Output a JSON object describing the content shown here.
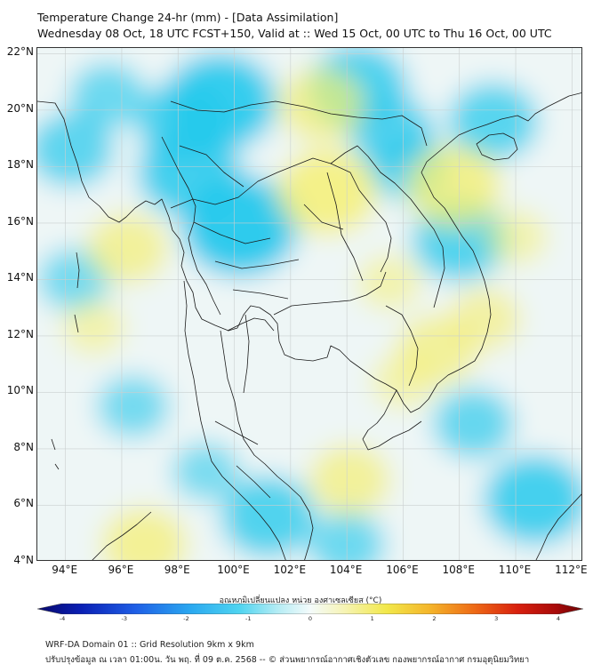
{
  "header": {
    "title": "Temperature Change 24-hr (mm) - [Data Assimilation]",
    "subtitle": "Wednesday 08 Oct, 18 UTC FCST+150, Valid at :: Wed 15 Oct, 00 UTC to Thu 16 Oct, 00 UTC"
  },
  "axes": {
    "lat_labels": [
      "22°N",
      "20°N",
      "18°N",
      "16°N",
      "14°N",
      "12°N",
      "10°N",
      "8°N",
      "6°N",
      "4°N"
    ],
    "lon_labels": [
      "94°E",
      "96°E",
      "98°E",
      "100°E",
      "102°E",
      "104°E",
      "106°E",
      "108°E",
      "110°E",
      "112°E"
    ],
    "lat_values": [
      22,
      20,
      18,
      16,
      14,
      12,
      10,
      8,
      6,
      4
    ],
    "lon_values": [
      94,
      96,
      98,
      100,
      102,
      104,
      106,
      108,
      110,
      112
    ],
    "lat_range": [
      4,
      22.2
    ],
    "lon_range": [
      93,
      112.4
    ]
  },
  "field_blobs": [
    {
      "lon": 99.5,
      "lat": 20.3,
      "value": -1.6
    },
    {
      "lon": 98.4,
      "lat": 17.8,
      "value": -1.4
    },
    {
      "lon": 100.2,
      "lat": 15.9,
      "value": -1.7
    },
    {
      "lon": 98.2,
      "lat": 19.6,
      "value": -1.2
    },
    {
      "lon": 104.4,
      "lat": 20.8,
      "value": -1.3
    },
    {
      "lon": 105.6,
      "lat": 19.2,
      "value": -1.0
    },
    {
      "lon": 106.2,
      "lat": 18.0,
      "value": -0.9
    },
    {
      "lon": 108.0,
      "lat": 15.4,
      "value": -1.2
    },
    {
      "lon": 109.2,
      "lat": 19.6,
      "value": -1.1
    },
    {
      "lon": 94.2,
      "lat": 18.6,
      "value": -1.0
    },
    {
      "lon": 95.5,
      "lat": 20.5,
      "value": -0.8
    },
    {
      "lon": 94.3,
      "lat": 14.0,
      "value": -0.7
    },
    {
      "lon": 101.2,
      "lat": 5.6,
      "value": -1.2
    },
    {
      "lon": 104.0,
      "lat": 4.6,
      "value": -0.8
    },
    {
      "lon": 110.7,
      "lat": 6.2,
      "value": -1.4
    },
    {
      "lon": 108.5,
      "lat": 8.9,
      "value": -0.9
    },
    {
      "lon": 96.4,
      "lat": 9.5,
      "value": -0.7
    },
    {
      "lon": 99.0,
      "lat": 7.2,
      "value": -0.6
    },
    {
      "lon": 103.3,
      "lat": 17.1,
      "value": 1.3
    },
    {
      "lon": 103.1,
      "lat": 20.2,
      "value": 1.0
    },
    {
      "lon": 107.8,
      "lat": 17.3,
      "value": 1.2
    },
    {
      "lon": 96.2,
      "lat": 15.1,
      "value": 0.9
    },
    {
      "lon": 107.2,
      "lat": 11.5,
      "value": 0.9
    },
    {
      "lon": 104.1,
      "lat": 6.9,
      "value": 0.9
    },
    {
      "lon": 96.8,
      "lat": 4.6,
      "value": 1.0
    },
    {
      "lon": 105.5,
      "lat": 13.9,
      "value": 0.5
    },
    {
      "lon": 108.9,
      "lat": 12.6,
      "value": 0.7
    },
    {
      "lon": 95.0,
      "lat": 12.3,
      "value": 0.5
    },
    {
      "lon": 110.0,
      "lat": 15.5,
      "value": 0.5
    },
    {
      "lon": 106.0,
      "lat": 10.4,
      "value": 0.5
    }
  ],
  "colorbar": {
    "title": "อุณหภูมิเปลี่ยนแปลง หน่วย องศาเซลเซียส (°C)",
    "ticks": [
      "-4",
      "-3",
      "-2",
      "-1",
      "0",
      "1",
      "2",
      "3",
      "4"
    ],
    "range": [
      -4,
      4
    ]
  },
  "footer": {
    "line1": "WRF-DA Domain 01 :: Grid Resolution 9km x 9km",
    "line2": "ปรับปรุงข้อมูล ณ เวลา 01:00น. วัน พฤ. ที่ 09 ต.ค. 2568 -- © ส่วนพยากรณ์อากาศเชิงตัวเลข กองพยากรณ์อากาศ กรมอุตุนิยมวิทยา"
  },
  "colors": {
    "cold": "#22c8ec",
    "warm": "#f5ef6e",
    "neutral": "#eef6f6",
    "coast": "#1a1a1a",
    "grid": "#c9cfcf"
  }
}
